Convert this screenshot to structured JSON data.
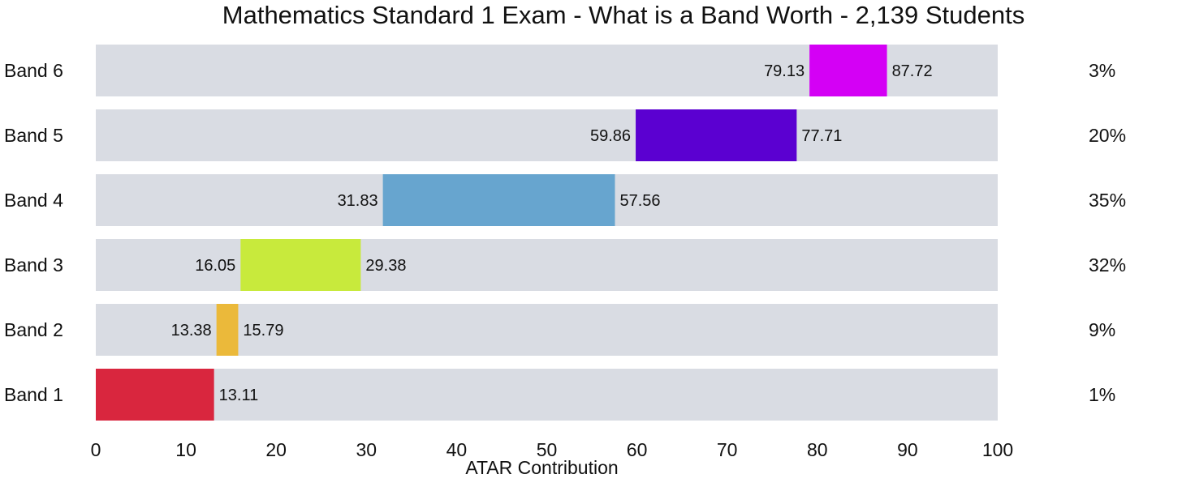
{
  "chart_data": {
    "type": "bar",
    "subtype": "floating-range-horizontal",
    "title": "Mathematics Standard 1 Exam - What is a Band Worth - 2,139 Students",
    "xlabel": "ATAR Contribution",
    "ylabel": "",
    "xlim": [
      0,
      100
    ],
    "xticks": [
      0,
      10,
      20,
      30,
      40,
      50,
      60,
      70,
      80,
      90,
      100
    ],
    "grid": false,
    "background_track_color": "#d9dce3",
    "series": [
      {
        "category": "Band 6",
        "start": 79.13,
        "end": 87.72,
        "start_label": "79.13",
        "end_label": "87.72",
        "percent": "3%",
        "color": "#d400f5"
      },
      {
        "category": "Band 5",
        "start": 59.86,
        "end": 77.71,
        "start_label": "59.86",
        "end_label": "77.71",
        "percent": "20%",
        "color": "#5b00d1"
      },
      {
        "category": "Band 4",
        "start": 31.83,
        "end": 57.56,
        "start_label": "31.83",
        "end_label": "57.56",
        "percent": "35%",
        "color": "#67a5cf"
      },
      {
        "category": "Band 3",
        "start": 16.05,
        "end": 29.38,
        "start_label": "16.05",
        "end_label": "29.38",
        "percent": "32%",
        "color": "#c8ea3c"
      },
      {
        "category": "Band 2",
        "start": 13.38,
        "end": 15.79,
        "start_label": "13.38",
        "end_label": "15.79",
        "percent": "9%",
        "color": "#ebb93a"
      },
      {
        "category": "Band 1",
        "start": 0,
        "end": 13.11,
        "start_label": "",
        "end_label": "13.11",
        "percent": "1%",
        "color": "#d9263e"
      }
    ]
  }
}
